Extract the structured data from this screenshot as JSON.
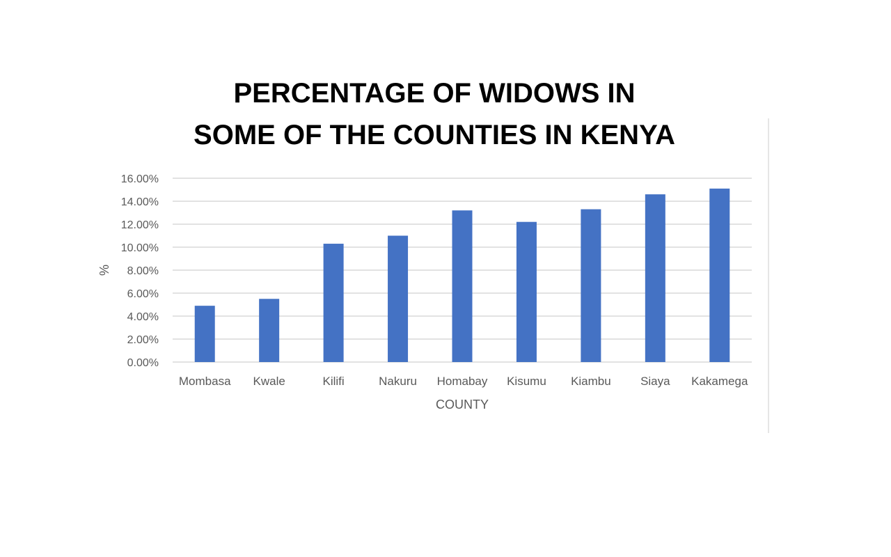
{
  "chart_data": {
    "type": "bar",
    "title_lines": [
      "PERCENTAGE OF WIDOWS IN",
      "SOME OF THE COUNTIES IN KENYA"
    ],
    "xlabel": "COUNTY",
    "ylabel": "%",
    "categories": [
      "Mombasa",
      "Kwale",
      "Kilifi",
      "Nakuru",
      "Homabay",
      "Kisumu",
      "Kiambu",
      "Siaya",
      "Kakamega"
    ],
    "values": [
      4.9,
      5.5,
      10.3,
      11.0,
      13.2,
      12.2,
      13.3,
      14.6,
      15.1
    ],
    "ylim": [
      0,
      16
    ],
    "yticks": [
      "0.00%",
      "2.00%",
      "4.00%",
      "6.00%",
      "8.00%",
      "10.00%",
      "12.00%",
      "14.00%",
      "16.00%"
    ],
    "grid": true,
    "legend": "none",
    "bar_color": "#4472C4"
  }
}
